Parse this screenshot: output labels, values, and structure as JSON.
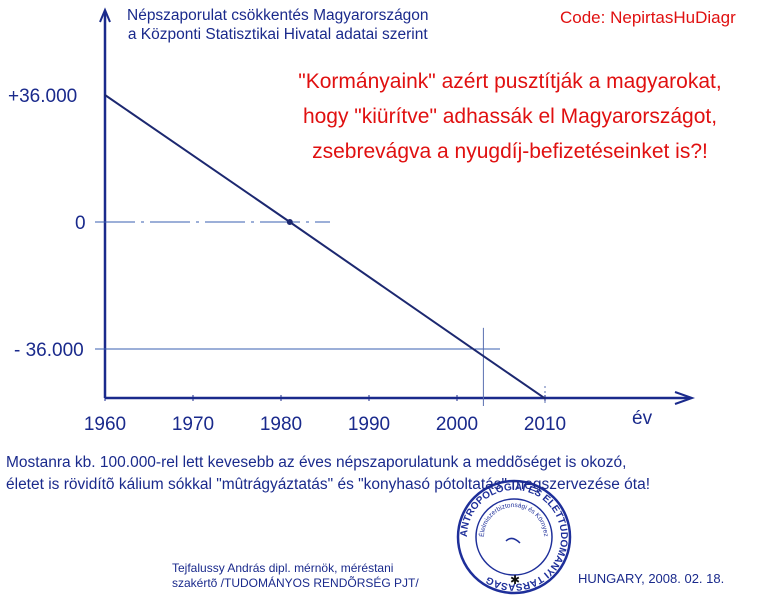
{
  "title_lines": [
    "Népszaporulat csökkentés Magyarországon",
    "a Központi Statisztikai Hivatal adatai szerint"
  ],
  "code": "Code: NepirtasHuDiagr",
  "slogan_lines": [
    "\"Kormányaink\" azért pusztítják a magyarokat,",
    "hogy \"kiürítve\" adhassák el Magyarországot,",
    "zsebrevágva a nyugdíj-befizetéseinket is?!"
  ],
  "footnote_lines": [
    "Mostanra kb. 100.000-rel lett kevesebb az éves népszaporulatunk a meddõséget is okozó,",
    "életet is rövidítõ kálium sókkal \"mûtrágyáztatás\" és \"konyhasó pótoltatás\" megszervezése óta!"
  ],
  "author_lines": [
    "Tejfalussy András dipl. mérnök, méréstani",
    "szakértõ /TUDOMÁNYOS RENDÕRSÉG PJT/"
  ],
  "date": "HUNGARY, 2008. 02. 18.",
  "colors": {
    "ink": "#1a2a8c",
    "red": "#e01010",
    "line": "#1c2870"
  },
  "chart_data": {
    "type": "line",
    "title": "Népszaporulat csökkentés Magyarországon a Központi Statisztikai Hivatal adatai szerint",
    "xlabel": "év",
    "ylabel": "",
    "x_ticks": [
      1960,
      1970,
      1980,
      1990,
      2000,
      2010
    ],
    "x_tick_labels": [
      "1960",
      "1970",
      "1980",
      "1990",
      "2000",
      "2010"
    ],
    "y_ticks": [
      36000,
      0,
      -36000
    ],
    "y_tick_labels": [
      "+36.000",
      "0",
      "- 36.000"
    ],
    "xlim": [
      1960,
      2010
    ],
    "ylim": [
      -50000,
      36000
    ],
    "series": [
      {
        "x": [
          1960,
          1981,
          2003,
          2010
        ],
        "y": [
          36000,
          0,
          -38000,
          -50000
        ]
      }
    ],
    "markers": [
      {
        "x": 1981,
        "y": 0
      }
    ],
    "guides": [
      {
        "axis": "y",
        "value": 0,
        "style": "dash-dot"
      },
      {
        "axis": "y",
        "value": -36000,
        "style": "solid"
      },
      {
        "axis": "x",
        "value": 2003,
        "style": "solid"
      },
      {
        "axis": "x",
        "value": 2010,
        "style": "dotted"
      }
    ],
    "grid": false,
    "legend": "none"
  },
  "stamp": {
    "ring_text": "ANTROPOLÓGIAI ÉS ÉLETTUDOMÁNYI TÁRSASÁG",
    "inner_text": "Élelmiszerbiztonsági és Környezetvédelmi Szakcsoport"
  }
}
